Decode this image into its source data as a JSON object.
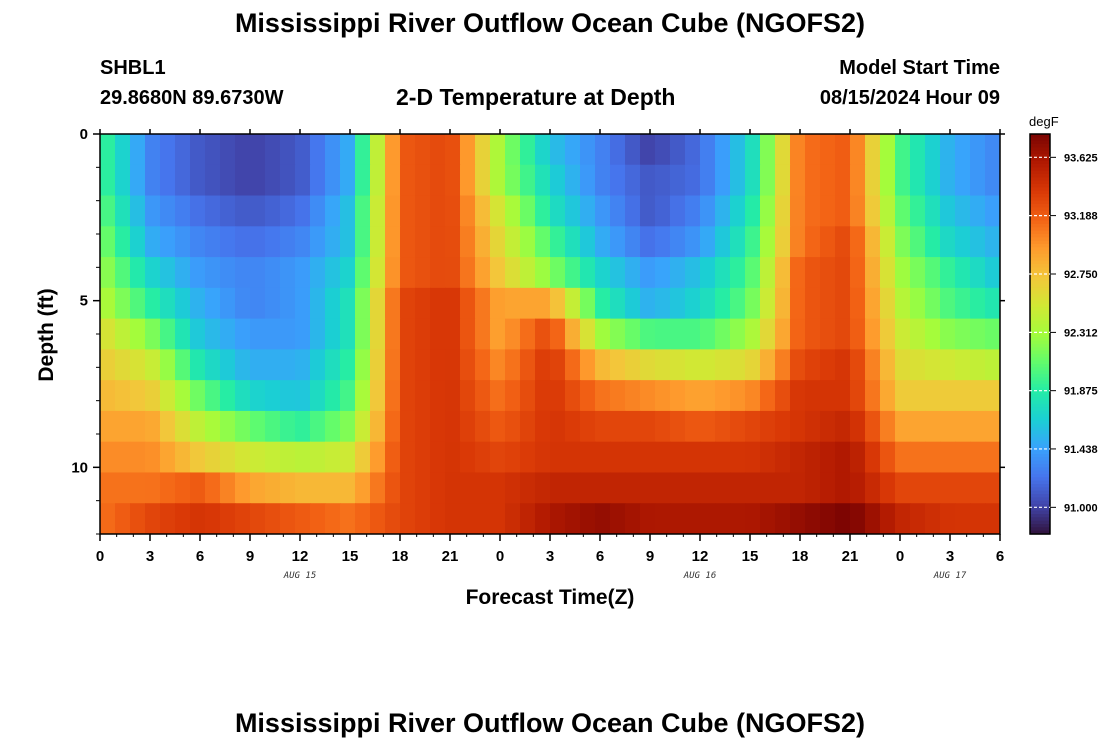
{
  "page_title": "Mississippi River Outflow Ocean Cube (NGOFS2)",
  "bottom_title": "Mississippi River Outflow Ocean Cube (NGOFS2)",
  "station": {
    "name": "SHBL1",
    "coords": "29.8680N  89.6730W"
  },
  "model_start": {
    "label": "Model Start Time",
    "value": "08/15/2024 Hour 09"
  },
  "chart_data": {
    "type": "heatmap",
    "title": "2-D Temperature at Depth",
    "xlabel": "Forecast Time(Z)",
    "ylabel": "Depth (ft)",
    "x_hours_range": [
      0,
      54
    ],
    "x_tick_labels": [
      "0",
      "3",
      "6",
      "9",
      "12",
      "15",
      "18",
      "21",
      "0",
      "3",
      "6",
      "9",
      "12",
      "15",
      "18",
      "21",
      "0",
      "3",
      "6"
    ],
    "date_labels": [
      {
        "text": "AUG 15",
        "hour": 12
      },
      {
        "text": "AUG 16",
        "hour": 36
      },
      {
        "text": "AUG 17",
        "hour": 51
      }
    ],
    "y_range_ft": [
      0,
      12
    ],
    "y_tick_labels": [
      "0",
      "5",
      "10"
    ],
    "colorbar": {
      "unit": "degF",
      "range": [
        90.8,
        93.8
      ],
      "tick_labels": [
        "93.625",
        "93.188",
        "92.750",
        "92.312",
        "91.875",
        "91.438",
        "91.000"
      ],
      "colors": [
        "#30123b",
        "#4145ab",
        "#4675ed",
        "#39a2fc",
        "#1bcfd4",
        "#24eca6",
        "#61fc6c",
        "#a4fc3b",
        "#d1e834",
        "#f3c63a",
        "#fe9b2d",
        "#f36315",
        "#d93806",
        "#b11901",
        "#7a0402"
      ]
    },
    "depth_levels_ft": [
      0,
      1,
      2,
      3,
      4,
      5,
      6,
      7,
      8,
      9,
      10,
      11,
      12
    ],
    "time_hours": [
      0,
      3,
      6,
      9,
      12,
      15,
      18,
      21,
      24,
      27,
      30,
      33,
      36,
      39,
      42,
      45,
      48,
      51,
      54
    ],
    "temperature_degF": [
      [
        92.0,
        91.3,
        91.1,
        91.0,
        91.1,
        91.5,
        93.2,
        93.3,
        92.3,
        91.6,
        91.3,
        91.0,
        91.2,
        91.7,
        93.1,
        93.2,
        92.0,
        91.5,
        91.3
      ],
      [
        92.0,
        91.3,
        91.1,
        91.0,
        91.1,
        91.5,
        93.2,
        93.3,
        92.3,
        91.7,
        91.3,
        91.1,
        91.2,
        91.7,
        93.1,
        93.2,
        92.0,
        91.5,
        91.3
      ],
      [
        92.1,
        91.4,
        91.2,
        91.1,
        91.2,
        91.6,
        93.2,
        93.3,
        92.5,
        91.8,
        91.4,
        91.1,
        91.3,
        91.8,
        93.1,
        93.2,
        92.1,
        91.6,
        91.4
      ],
      [
        92.2,
        91.5,
        91.3,
        91.2,
        91.3,
        91.6,
        93.2,
        93.3,
        92.6,
        92.0,
        91.5,
        91.2,
        91.4,
        91.9,
        93.1,
        93.3,
        92.2,
        91.7,
        91.5
      ],
      [
        92.3,
        91.7,
        91.4,
        91.3,
        91.4,
        91.7,
        93.2,
        93.3,
        92.7,
        92.2,
        91.7,
        91.4,
        91.6,
        92.0,
        93.2,
        93.3,
        92.3,
        91.9,
        91.6
      ],
      [
        92.4,
        91.9,
        91.5,
        91.3,
        91.4,
        91.8,
        93.3,
        93.4,
        92.9,
        92.9,
        91.9,
        91.5,
        91.7,
        92.1,
        93.2,
        93.3,
        92.4,
        92.0,
        91.8
      ],
      [
        92.6,
        92.2,
        91.6,
        91.4,
        91.4,
        91.8,
        93.3,
        93.4,
        92.9,
        93.3,
        92.3,
        92.0,
        92.0,
        92.3,
        93.2,
        93.3,
        92.5,
        92.2,
        92.1
      ],
      [
        92.7,
        92.5,
        91.8,
        91.5,
        91.5,
        91.9,
        93.3,
        93.4,
        93.0,
        93.4,
        92.8,
        92.6,
        92.5,
        92.6,
        93.3,
        93.4,
        92.6,
        92.5,
        92.4
      ],
      [
        92.8,
        92.7,
        92.1,
        91.7,
        91.6,
        92.0,
        93.3,
        93.4,
        93.1,
        93.4,
        93.1,
        93.0,
        92.9,
        93.0,
        93.4,
        93.4,
        92.7,
        92.7,
        92.7
      ],
      [
        92.9,
        92.9,
        92.4,
        92.1,
        91.9,
        92.2,
        93.3,
        93.4,
        93.2,
        93.4,
        93.3,
        93.3,
        93.2,
        93.3,
        93.4,
        93.5,
        92.9,
        92.9,
        92.9
      ],
      [
        93.0,
        93.0,
        92.7,
        92.5,
        92.4,
        92.5,
        93.3,
        93.4,
        93.3,
        93.4,
        93.4,
        93.4,
        93.4,
        93.4,
        93.5,
        93.6,
        93.1,
        93.1,
        93.1
      ],
      [
        93.1,
        93.1,
        93.2,
        92.9,
        92.8,
        92.8,
        93.3,
        93.4,
        93.4,
        93.5,
        93.5,
        93.5,
        93.5,
        93.5,
        93.5,
        93.6,
        93.3,
        93.3,
        93.3
      ],
      [
        93.1,
        93.3,
        93.4,
        93.3,
        93.2,
        93.1,
        93.3,
        93.4,
        93.4,
        93.6,
        93.7,
        93.6,
        93.6,
        93.6,
        93.7,
        93.8,
        93.5,
        93.4,
        93.4
      ]
    ]
  }
}
